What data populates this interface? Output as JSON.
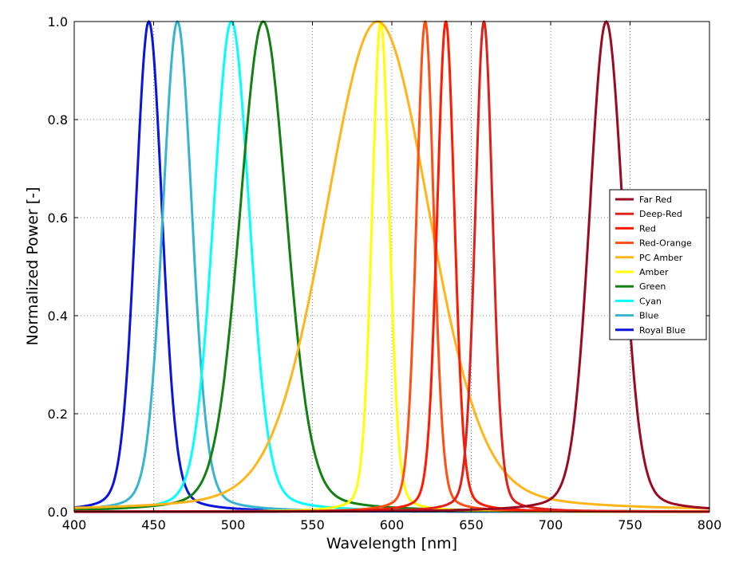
{
  "chart_data": {
    "type": "line",
    "title": "",
    "xlabel": "Wavelength [nm]",
    "ylabel": "Normalized Power [-]",
    "xlim": [
      400,
      800
    ],
    "ylim": [
      0.0,
      1.0
    ],
    "xticks": [
      400,
      450,
      500,
      550,
      600,
      650,
      700,
      750,
      800
    ],
    "xtick_labels": [
      "400",
      "450",
      "500",
      "550",
      "600",
      "650",
      "700",
      "750",
      "800"
    ],
    "yticks": [
      0.0,
      0.2,
      0.4,
      0.6,
      0.8,
      1.0
    ],
    "ytick_labels": [
      "0.0",
      "0.2",
      "0.4",
      "0.6",
      "0.8",
      "1.0"
    ],
    "grid": true,
    "legend_position": "center-right",
    "series": [
      {
        "name": "Far Red",
        "color": "#9b0a23",
        "peak": 735,
        "fwhm": 25
      },
      {
        "name": "Deep-Red",
        "color": "#e0201b",
        "peak": 658,
        "fwhm": 13
      },
      {
        "name": "Red",
        "color": "#ff1a00",
        "peak": 634,
        "fwhm": 13
      },
      {
        "name": "Red-Orange",
        "color": "#ff4f14",
        "peak": 621,
        "fwhm": 13
      },
      {
        "name": "PC Amber",
        "color": "#ffb51a",
        "peak": 591,
        "fwhm": 78
      },
      {
        "name": "Amber",
        "color": "#ffff00",
        "peak": 593,
        "fwhm": 13
      },
      {
        "name": "Green",
        "color": "#128012",
        "peak": 519,
        "fwhm": 35
      },
      {
        "name": "Cyan",
        "color": "#00ffff",
        "peak": 499,
        "fwhm": 27
      },
      {
        "name": "Blue",
        "color": "#37b4cf",
        "peak": 465,
        "fwhm": 22
      },
      {
        "name": "Royal Blue",
        "color": "#0a14dc",
        "peak": 447,
        "fwhm": 20
      }
    ]
  }
}
